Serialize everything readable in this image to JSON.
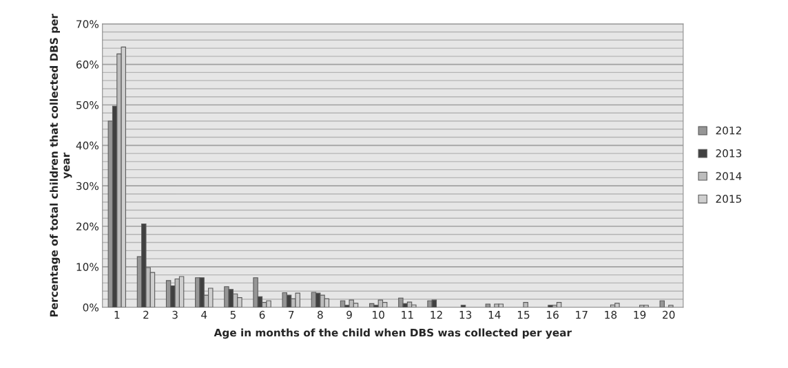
{
  "chart_data": {
    "type": "bar",
    "xlabel": "Age in months of the child when DBS was collected per year",
    "ylabel": "Percentage of total children that collected DBS per year",
    "categories": [
      "1",
      "2",
      "3",
      "4",
      "5",
      "6",
      "7",
      "8",
      "9",
      "10",
      "11",
      "12",
      "13",
      "14",
      "15",
      "16",
      "17",
      "18",
      "19",
      "20"
    ],
    "series": [
      {
        "name": "2012",
        "color": "#969696",
        "values": [
          46.0,
          12.5,
          6.6,
          7.3,
          5.1,
          7.3,
          3.6,
          3.7,
          1.6,
          0.9,
          2.3,
          1.6,
          0,
          0.8,
          0,
          0,
          0,
          0,
          0,
          1.6
        ]
      },
      {
        "name": "2013",
        "color": "#404040",
        "values": [
          49.7,
          20.6,
          5.3,
          7.3,
          4.4,
          2.6,
          3.0,
          3.5,
          0.5,
          0.5,
          0.9,
          1.8,
          0.5,
          0,
          0,
          0.5,
          0,
          0,
          0,
          0
        ]
      },
      {
        "name": "2014",
        "color": "#bdbdbd",
        "values": [
          62.6,
          9.8,
          7.0,
          3.0,
          3.3,
          1.2,
          2.1,
          3.0,
          1.8,
          1.8,
          1.3,
          0,
          0,
          0.8,
          1.2,
          0.5,
          0,
          0.6,
          0.5,
          0.5
        ]
      },
      {
        "name": "2015",
        "color": "#cfcfcf",
        "values": [
          64.3,
          8.6,
          7.6,
          4.7,
          2.4,
          1.6,
          3.5,
          2.1,
          1.0,
          1.2,
          0.6,
          0,
          0,
          0.8,
          0,
          1.2,
          0,
          1.0,
          0.5,
          0
        ]
      }
    ],
    "ylim": [
      0,
      70
    ],
    "yticks": [
      {
        "value": 0,
        "label": "0%"
      },
      {
        "value": 2,
        "label": null
      },
      {
        "value": 4,
        "label": null
      },
      {
        "value": 6,
        "label": null
      },
      {
        "value": 8,
        "label": null
      },
      {
        "value": 10,
        "label": "10%"
      },
      {
        "value": 12,
        "label": null
      },
      {
        "value": 14,
        "label": null
      },
      {
        "value": 16,
        "label": null
      },
      {
        "value": 18,
        "label": null
      },
      {
        "value": 20,
        "label": "20%"
      },
      {
        "value": 22,
        "label": null
      },
      {
        "value": 24,
        "label": null
      },
      {
        "value": 26,
        "label": null
      },
      {
        "value": 28,
        "label": null
      },
      {
        "value": 30,
        "label": "30%"
      },
      {
        "value": 32,
        "label": null
      },
      {
        "value": 34,
        "label": null
      },
      {
        "value": 36,
        "label": null
      },
      {
        "value": 38,
        "label": null
      },
      {
        "value": 40,
        "label": "40%"
      },
      {
        "value": 42,
        "label": null
      },
      {
        "value": 44,
        "label": null
      },
      {
        "value": 46,
        "label": null
      },
      {
        "value": 48,
        "label": null
      },
      {
        "value": 50,
        "label": "50%"
      },
      {
        "value": 52,
        "label": null
      },
      {
        "value": 54,
        "label": null
      },
      {
        "value": 56,
        "label": null
      },
      {
        "value": 58,
        "label": null
      },
      {
        "value": 60,
        "label": "60%"
      },
      {
        "value": 62,
        "label": null
      },
      {
        "value": 64,
        "label": null
      },
      {
        "value": 66,
        "label": null
      },
      {
        "value": 68,
        "label": null
      },
      {
        "value": 70,
        "label": "70%"
      }
    ],
    "grid": "y",
    "legend": "right"
  }
}
